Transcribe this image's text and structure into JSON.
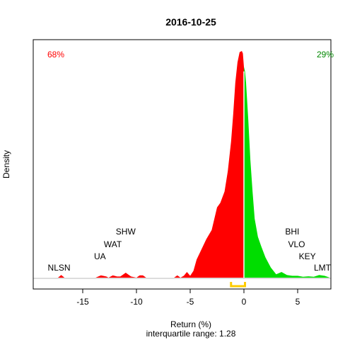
{
  "chart_data": {
    "type": "area",
    "title": "2016-10-25",
    "xlabel": "Return (%)",
    "ylabel": "Density",
    "subtitle": "interquartile range: 1.28",
    "xlim": [
      -18.5,
      9
    ],
    "xticks": [
      -15,
      -10,
      -5,
      0,
      5
    ],
    "split_at": 0,
    "negative_share": "68%",
    "positive_share": "29%",
    "colors": {
      "negative": "#ff0000",
      "positive": "#00dd00",
      "iqr": "#ffcc00"
    },
    "iqr": [
      -1.2,
      0.1
    ],
    "density": {
      "x": [
        -17.3,
        -17.0,
        -16.7,
        -13.8,
        -13.3,
        -12.8,
        -12.6,
        -12.2,
        -11.8,
        -11.5,
        -11.0,
        -10.5,
        -10.0,
        -9.7,
        -9.4,
        -9.1,
        -6.5,
        -6.2,
        -5.9,
        -5.6,
        -5.3,
        -5.0,
        -4.7,
        -4.4,
        -4.0,
        -3.5,
        -3.0,
        -2.5,
        -2.2,
        -1.8,
        -1.5,
        -1.2,
        -1.0,
        -0.8,
        -0.6,
        -0.4,
        -0.2,
        -0.1,
        0.0,
        0.1,
        0.2,
        0.4,
        0.6,
        0.8,
        1.0,
        1.3,
        1.6,
        2.0,
        2.5,
        3.0,
        3.5,
        4.0,
        4.5,
        5.0,
        5.5,
        6.0,
        6.5,
        7.0,
        7.5,
        8.0
      ],
      "y": [
        0,
        0.012,
        0,
        0,
        0.01,
        0.005,
        0,
        0.01,
        0.005,
        0.005,
        0.022,
        0.005,
        0,
        0.01,
        0.01,
        0,
        0,
        0.01,
        0,
        0.008,
        0.025,
        0.008,
        0.03,
        0.08,
        0.12,
        0.17,
        0.21,
        0.31,
        0.33,
        0.38,
        0.47,
        0.6,
        0.72,
        0.86,
        0.95,
        0.995,
        1.0,
        0.99,
        0.93,
        0.91,
        0.86,
        0.7,
        0.52,
        0.38,
        0.26,
        0.18,
        0.14,
        0.09,
        0.045,
        0.015,
        0.025,
        0.012,
        0.008,
        0.008,
        0.004,
        0.006,
        0.004,
        0.012,
        0.008,
        0
      ]
    },
    "annotations": [
      {
        "label": "NLSN",
        "x": -17.2,
        "level": 1
      },
      {
        "label": "UA",
        "x": -13.4,
        "level": 2
      },
      {
        "label": "WAT",
        "x": -12.2,
        "level": 3
      },
      {
        "label": "SHW",
        "x": -11.0,
        "level": 4
      },
      {
        "label": "BHI",
        "x": 4.5,
        "level": 4
      },
      {
        "label": "VLO",
        "x": 4.9,
        "level": 3
      },
      {
        "label": "KEY",
        "x": 5.9,
        "level": 2
      },
      {
        "label": "LMT",
        "x": 7.3,
        "level": 1
      }
    ]
  }
}
